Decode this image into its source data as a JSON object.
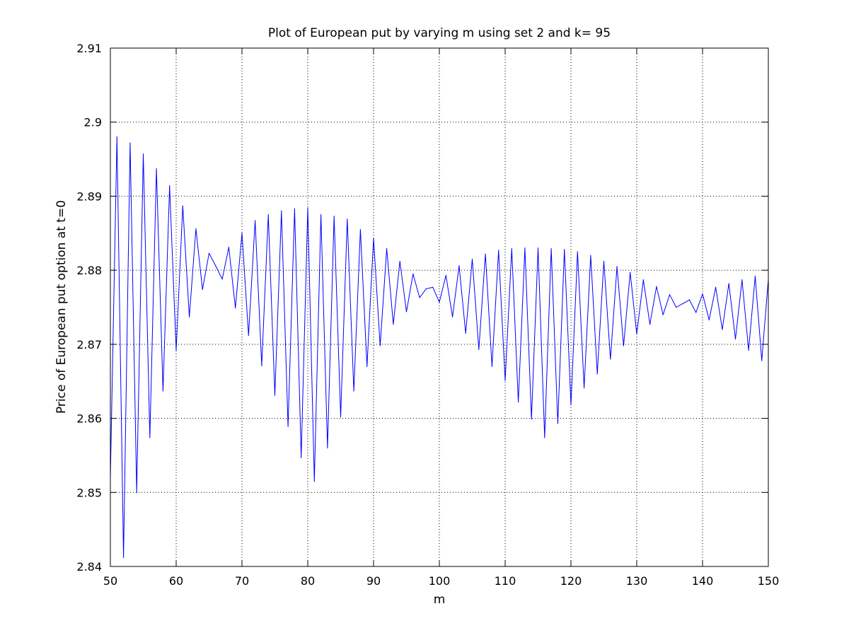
{
  "chart_data": {
    "type": "line",
    "title": "Plot of European put by varying m using set 2 and k= 95",
    "xlabel": "m",
    "ylabel": "Price of European put option at t=0",
    "xlim": [
      50,
      150
    ],
    "ylim": [
      2.84,
      2.91
    ],
    "xticks": [
      50,
      60,
      70,
      80,
      90,
      100,
      110,
      120,
      130,
      140,
      150
    ],
    "xtick_labels": [
      "50",
      "60",
      "70",
      "80",
      "90",
      "100",
      "110",
      "120",
      "130",
      "140",
      "150"
    ],
    "yticks": [
      2.84,
      2.85,
      2.86,
      2.87,
      2.88,
      2.89,
      2.9,
      2.91
    ],
    "ytick_labels": [
      "2.84",
      "2.85",
      "2.86",
      "2.87",
      "2.88",
      "2.89",
      "2.9",
      "2.91"
    ],
    "grid": true,
    "box": true,
    "series": [
      {
        "color": "#0000ff",
        "x": [
          50,
          51,
          52,
          53,
          54,
          55,
          56,
          57,
          58,
          59,
          60,
          61,
          62,
          63,
          64,
          65,
          66,
          67,
          68,
          69,
          70,
          71,
          72,
          73,
          74,
          75,
          76,
          77,
          78,
          79,
          80,
          81,
          82,
          83,
          84,
          85,
          86,
          87,
          88,
          89,
          90,
          91,
          92,
          93,
          94,
          95,
          96,
          97,
          98,
          99,
          100,
          101,
          102,
          103,
          104,
          105,
          106,
          107,
          108,
          109,
          110,
          111,
          112,
          113,
          114,
          115,
          116,
          117,
          118,
          119,
          120,
          121,
          122,
          123,
          124,
          125,
          126,
          127,
          128,
          129,
          130,
          131,
          132,
          133,
          134,
          135,
          136,
          137,
          138,
          139,
          140,
          141,
          142,
          143,
          144,
          145,
          146,
          147,
          148,
          149,
          150
        ],
        "y": [
          2.852,
          2.898,
          2.8412,
          2.8972,
          2.85,
          2.8957,
          2.8574,
          2.8937,
          2.8637,
          2.8914,
          2.8692,
          2.8887,
          2.8737,
          2.8856,
          2.8774,
          2.8823,
          2.8806,
          2.8788,
          2.8831,
          2.8749,
          2.885,
          2.8712,
          2.8867,
          2.8671,
          2.8875,
          2.8631,
          2.888,
          2.8589,
          2.8883,
          2.8547,
          2.8884,
          2.8515,
          2.8875,
          2.856,
          2.8873,
          2.8602,
          2.8869,
          2.8637,
          2.8855,
          2.867,
          2.8843,
          2.8698,
          2.8829,
          2.8727,
          2.8812,
          2.8744,
          2.8795,
          2.8763,
          2.8775,
          2.8777,
          2.8757,
          2.8793,
          2.8737,
          2.8806,
          2.8715,
          2.8815,
          2.8693,
          2.8822,
          2.867,
          2.8827,
          2.8651,
          2.8829,
          2.8622,
          2.883,
          2.8599,
          2.883,
          2.8574,
          2.8829,
          2.8593,
          2.8828,
          2.8618,
          2.8825,
          2.8641,
          2.882,
          2.866,
          2.8812,
          2.868,
          2.8805,
          2.8698,
          2.8797,
          2.8714,
          2.8787,
          2.8727,
          2.8778,
          2.874,
          2.8767,
          2.875,
          2.8755,
          2.876,
          2.8743,
          2.8768,
          2.8733,
          2.8777,
          2.872,
          2.8782,
          2.8707,
          2.8787,
          2.8692,
          2.8792,
          2.8678,
          2.8788
        ]
      }
    ]
  }
}
